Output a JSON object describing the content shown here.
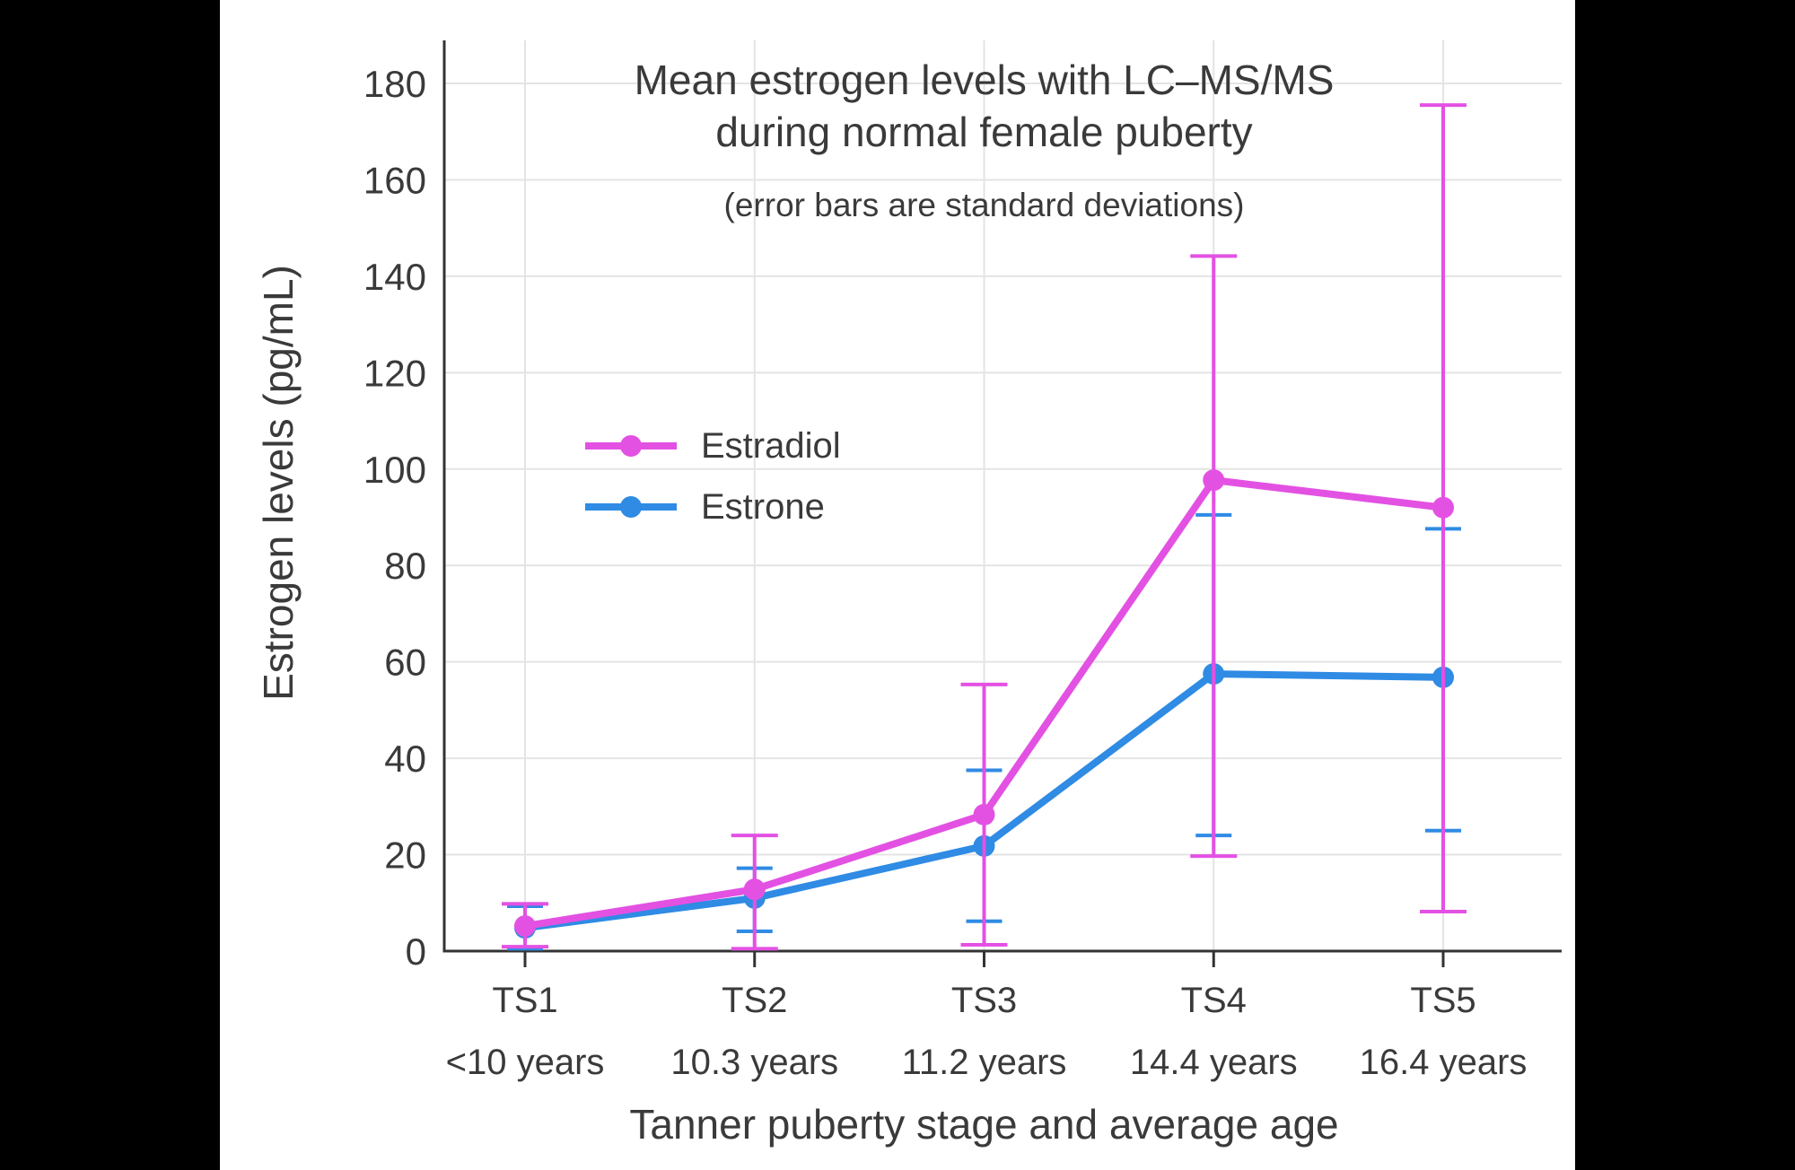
{
  "colors": {
    "letterbox": "#000000",
    "background": "#ffffff",
    "grid": "#e4e4e4",
    "axis": "#333333",
    "text": "#3a3a3a"
  },
  "chart_data": {
    "type": "line",
    "title_line1": "Mean estrogen levels with LC–MS/MS",
    "title_line2": "during normal female puberty",
    "subtitle": "(error bars are standard deviations)",
    "xlabel": "Tanner puberty stage and average age",
    "ylabel": "Estrogen levels (pg/mL)",
    "ylim": [
      0,
      180
    ],
    "ytick_step": 20,
    "grid": true,
    "legend_position": "inside-upper-left",
    "legend_order": [
      "Estradiol",
      "Estrone"
    ],
    "categories": [
      "TS1",
      "TS2",
      "TS3",
      "TS4",
      "TS5"
    ],
    "category_sublabels": [
      "<10 years",
      "10.3 years",
      "11.2 years",
      "14.4 years",
      "16.4 years"
    ],
    "series": [
      {
        "name": "Estrone",
        "color": "#2f8be4",
        "values": [
          4.8,
          11.0,
          21.8,
          57.5,
          56.8
        ],
        "upper": [
          9.3,
          17.2,
          37.5,
          90.5,
          87.6
        ],
        "lower": [
          0.5,
          4.1,
          6.2,
          24.0,
          25.0
        ]
      },
      {
        "name": "Estradiol",
        "color": "#e351e3",
        "values": [
          5.2,
          12.8,
          28.3,
          97.7,
          92.0
        ],
        "upper": [
          9.8,
          24.0,
          55.3,
          144.2,
          175.5
        ],
        "lower": [
          0.9,
          0.5,
          1.3,
          19.7,
          8.2
        ]
      }
    ]
  }
}
